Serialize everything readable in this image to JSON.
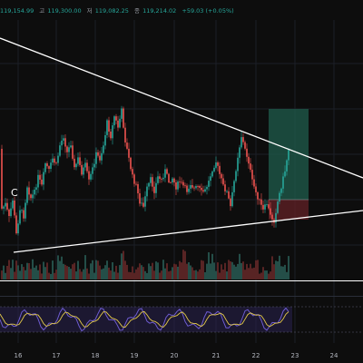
{
  "header": {
    "open_value": "119,154.99",
    "high_label": "고",
    "high_value": "119,300.00",
    "low_label": "저",
    "low_value": "119,082.25",
    "close_label": "종",
    "close_value": "119,214.02",
    "change": "+59.03 (+0.05%)"
  },
  "marker_text": "C",
  "chart_data": {
    "type": "candlestick",
    "x_tick_labels": [
      "16",
      "17",
      "18",
      "19",
      "20",
      "21",
      "22",
      "23",
      "24"
    ],
    "price_panel": {
      "grid": true
    },
    "overlays": {
      "upper_trendline": {
        "color": "#ffffff"
      },
      "lower_trendline": {
        "color": "#ffffff"
      },
      "long_position": {
        "profit_color": "#1f5c4c",
        "stop_color": "#5c1f24"
      }
    },
    "volume": {
      "color_up": "#2a5f57",
      "color_down": "#6b2a2a"
    },
    "oscillator": {
      "line1_color": "#6d5bd0",
      "line2_color": "#e3c94a",
      "band_color": "#2a2350"
    },
    "colors": {
      "up": "#26a69a",
      "down": "#ef5350",
      "background": "#0d0d0d"
    }
  }
}
